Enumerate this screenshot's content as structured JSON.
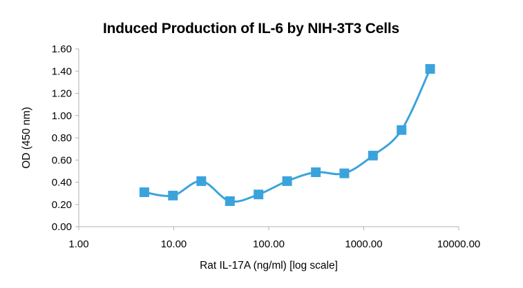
{
  "chart_data": {
    "type": "line",
    "title": "Induced Production of IL-6 by NIH-3T3 Cells",
    "xlabel": "Rat IL-17A (ng/ml) [log scale]",
    "ylabel": "OD (450 nm)",
    "xscale": "log",
    "xlim": [
      1,
      10000
    ],
    "ylim": [
      0,
      1.6
    ],
    "xticks": [
      "1.00",
      "10.00",
      "100.00",
      "1000.00",
      "10000.00"
    ],
    "yticks": [
      "0.00",
      "0.20",
      "0.40",
      "0.60",
      "0.80",
      "1.00",
      "1.20",
      "1.40",
      "1.60"
    ],
    "grid": false,
    "legend": "none",
    "series": [
      {
        "color": "#3ba3dc",
        "marker": "square",
        "smooth": true,
        "x": [
          4.9,
          9.8,
          19.5,
          39,
          78,
          156,
          313,
          625,
          1250,
          2500,
          5000
        ],
        "y": [
          0.31,
          0.28,
          0.41,
          0.23,
          0.29,
          0.41,
          0.49,
          0.48,
          0.64,
          0.87,
          1.42
        ]
      }
    ]
  }
}
